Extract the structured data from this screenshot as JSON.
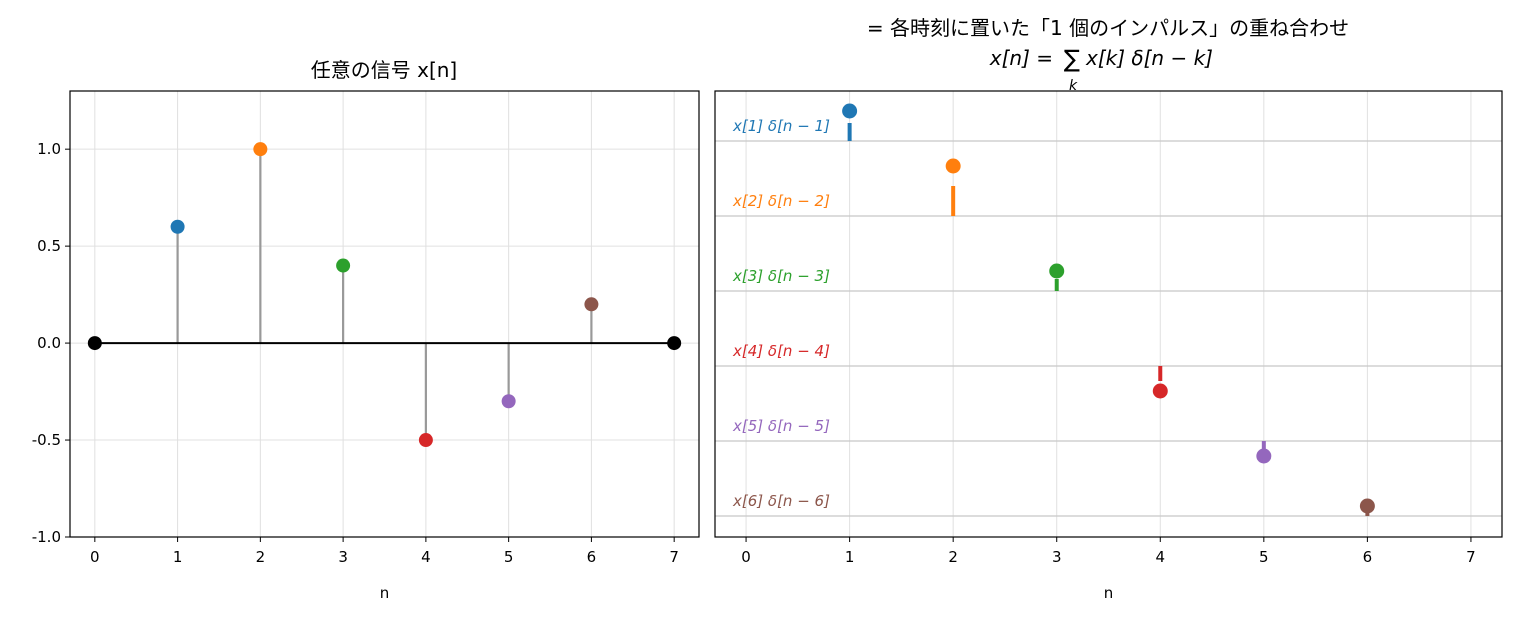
{
  "chart_data": [
    {
      "type": "stem",
      "title": "任意の信号 x[n]",
      "xlabel": "n",
      "ylabel": "",
      "xlim": [
        -0.3,
        7.3
      ],
      "ylim": [
        -1.0,
        1.3
      ],
      "xticks": [
        0,
        1,
        2,
        3,
        4,
        5,
        6,
        7
      ],
      "yticks": [
        -1.0,
        -0.5,
        0.0,
        0.5,
        1.0
      ],
      "ytick_labels": [
        "-1.0",
        "-0.5",
        "0.0",
        "0.5",
        "1.0"
      ],
      "grid": true,
      "points": [
        {
          "n": 0,
          "value": 0.0,
          "color": "#000000"
        },
        {
          "n": 1,
          "value": 0.6,
          "color": "#1f77b4"
        },
        {
          "n": 2,
          "value": 1.0,
          "color": "#ff7f0e"
        },
        {
          "n": 3,
          "value": 0.4,
          "color": "#2ca02c"
        },
        {
          "n": 4,
          "value": -0.5,
          "color": "#d62728"
        },
        {
          "n": 5,
          "value": -0.3,
          "color": "#9467bd"
        },
        {
          "n": 6,
          "value": 0.2,
          "color": "#8c564b"
        },
        {
          "n": 7,
          "value": 0.0,
          "color": "#000000"
        }
      ],
      "stem_color": "#999999",
      "baseline_color": "#000000"
    },
    {
      "type": "stacked-stem",
      "title_line1": "= 各時刻に置いた「1 個のインパルス」の重ね合わせ",
      "title_line2": {
        "lhs": "x[n] = ",
        "sum": "∑",
        "sub": "k",
        "rhs": "x[k] δ[n − k]"
      },
      "xlabel": "n",
      "xlim": [
        -0.3,
        7.3
      ],
      "xticks": [
        0,
        1,
        2,
        3,
        4,
        5,
        6,
        7
      ],
      "grid": true,
      "row_scale": 0.3,
      "rows": [
        {
          "k": 1,
          "value": 0.6,
          "label": "x[1] δ[n − 1]",
          "color": "#1f77b4"
        },
        {
          "k": 2,
          "value": 1.0,
          "label": "x[2] δ[n − 2]",
          "color": "#ff7f0e"
        },
        {
          "k": 3,
          "value": 0.4,
          "label": "x[3] δ[n − 3]",
          "color": "#2ca02c"
        },
        {
          "k": 4,
          "value": -0.5,
          "label": "x[4] δ[n − 4]",
          "color": "#d62728"
        },
        {
          "k": 5,
          "value": -0.3,
          "label": "x[5] δ[n − 5]",
          "color": "#9467bd"
        },
        {
          "k": 6,
          "value": 0.2,
          "label": "x[6] δ[n − 6]",
          "color": "#8c564b"
        }
      ]
    }
  ]
}
